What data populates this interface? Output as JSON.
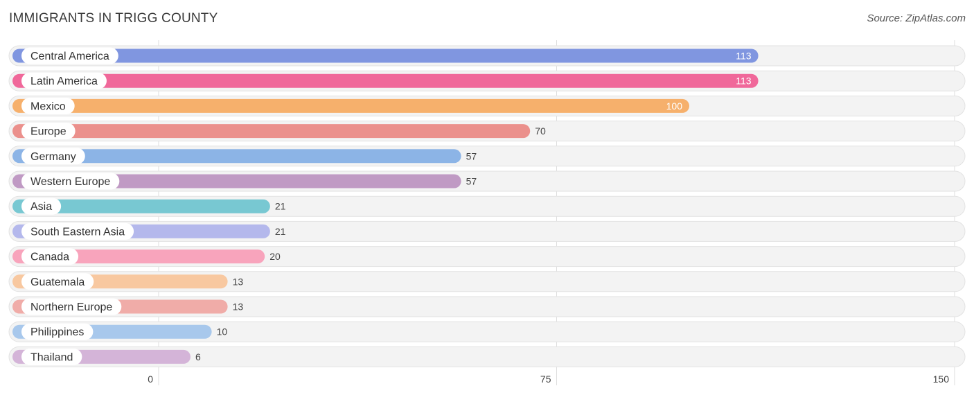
{
  "header": {
    "title": "IMMIGRANTS IN TRIGG COUNTY",
    "source": "Source: ZipAtlas.com"
  },
  "chart_data": {
    "type": "bar",
    "orientation": "horizontal",
    "title": "IMMIGRANTS IN TRIGG COUNTY",
    "xlabel": "",
    "ylabel": "",
    "xlim": [
      0,
      150
    ],
    "ticks": [
      0,
      75,
      150
    ],
    "grid": true,
    "categories": [
      "Central America",
      "Latin America",
      "Mexico",
      "Europe",
      "Germany",
      "Western Europe",
      "Asia",
      "South Eastern Asia",
      "Canada",
      "Guatemala",
      "Northern Europe",
      "Philippines",
      "Thailand"
    ],
    "values": [
      113,
      113,
      100,
      70,
      57,
      57,
      21,
      21,
      20,
      13,
      13,
      10,
      6
    ],
    "colors": [
      "#8096e0",
      "#f0689a",
      "#f6b06c",
      "#eb908c",
      "#8cb4e6",
      "#c09ac4",
      "#78c8d2",
      "#b4b8ec",
      "#f8a4bc",
      "#f8c8a0",
      "#f0aca8",
      "#a8c8ec",
      "#d4b4d8"
    ]
  }
}
